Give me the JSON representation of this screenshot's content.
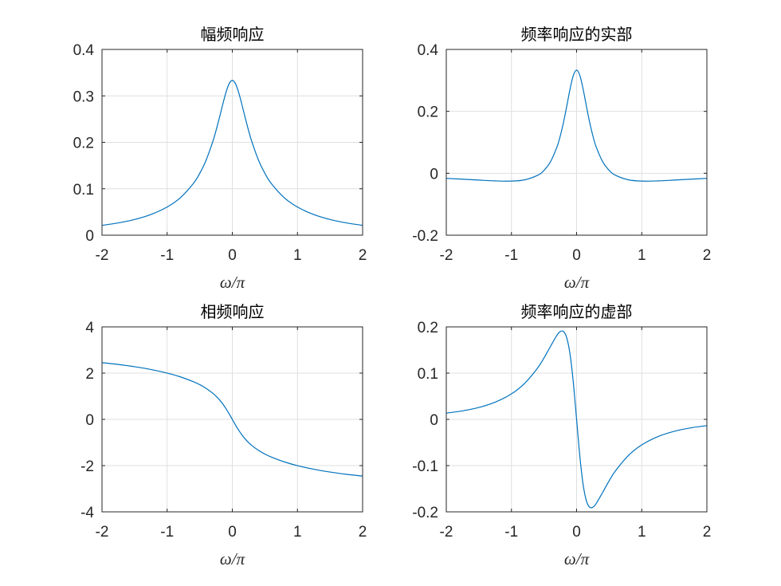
{
  "chart_data": [
    {
      "type": "line",
      "title": "幅频响应",
      "xlabel": "ω/π",
      "xlim": [
        -2,
        2
      ],
      "ylim": [
        0,
        0.4
      ],
      "xticks": [
        "-2",
        "-1",
        "0",
        "1",
        "2"
      ],
      "yticks": [
        "0",
        "0.1",
        "0.2",
        "0.3",
        "0.4"
      ],
      "ytick_values": [
        0,
        0.1,
        0.2,
        0.3,
        0.4
      ],
      "grid": true,
      "line_color": "#0072BD",
      "x": [
        -2,
        -1.75,
        -1.5,
        -1.25,
        -1,
        -0.8,
        -0.6,
        -0.5,
        -0.4,
        -0.3,
        -0.25,
        -0.2,
        -0.15,
        -0.1,
        -0.05,
        0,
        0.05,
        0.1,
        0.15,
        0.2,
        0.25,
        0.3,
        0.4,
        0.5,
        0.6,
        0.8,
        1,
        1.25,
        1.5,
        1.75,
        2
      ],
      "y": [
        0.0212,
        0.0265,
        0.0338,
        0.0445,
        0.0607,
        0.0804,
        0.111,
        0.1331,
        0.1623,
        0.2013,
        0.2252,
        0.2518,
        0.2798,
        0.3062,
        0.3259,
        0.3333,
        0.3259,
        0.3062,
        0.2798,
        0.2518,
        0.2252,
        0.2013,
        0.1623,
        0.1331,
        0.111,
        0.0804,
        0.0607,
        0.0445,
        0.0338,
        0.0265,
        0.0212
      ]
    },
    {
      "type": "line",
      "title": "频率响应的实部",
      "xlabel": "ω/π",
      "xlim": [
        -2,
        2
      ],
      "ylim": [
        -0.2,
        0.4
      ],
      "xticks": [
        "-2",
        "-1",
        "0",
        "1",
        "2"
      ],
      "yticks": [
        "-0.2",
        "0",
        "0.2",
        "0.4"
      ],
      "ytick_values": [
        -0.2,
        0,
        0.2,
        0.4
      ],
      "grid": true,
      "line_color": "#0072BD",
      "x": [
        -2,
        -1.75,
        -1.5,
        -1.25,
        -1,
        -0.8,
        -0.6,
        -0.5,
        -0.4,
        -0.3,
        -0.25,
        -0.2,
        -0.15,
        -0.1,
        -0.05,
        0,
        0.05,
        0.1,
        0.15,
        0.2,
        0.25,
        0.3,
        0.4,
        0.5,
        0.6,
        0.8,
        1,
        1.25,
        1.5,
        1.75,
        2
      ],
      "y": [
        -0.0164,
        -0.0191,
        -0.022,
        -0.0246,
        -0.0253,
        -0.0214,
        -0.0068,
        0.0094,
        0.0374,
        0.0856,
        0.1209,
        0.1652,
        0.2176,
        0.2721,
        0.3161,
        0.3333,
        0.3161,
        0.2721,
        0.2176,
        0.1652,
        0.1209,
        0.0856,
        0.0374,
        0.0094,
        -0.0068,
        -0.0214,
        -0.0253,
        -0.0246,
        -0.022,
        -0.0191,
        -0.0164
      ]
    },
    {
      "type": "line",
      "title": "相频响应",
      "xlabel": "ω/π",
      "xlim": [
        -2,
        2
      ],
      "ylim": [
        -4,
        4
      ],
      "xticks": [
        "-2",
        "-1",
        "0",
        "1",
        "2"
      ],
      "yticks": [
        "-4",
        "-2",
        "0",
        "2",
        "4"
      ],
      "ytick_values": [
        -4,
        -2,
        0,
        2,
        4
      ],
      "grid": true,
      "line_color": "#0072BD",
      "x": [
        -2,
        -1.75,
        -1.5,
        -1.25,
        -1,
        -0.8,
        -0.6,
        -0.5,
        -0.4,
        -0.3,
        -0.25,
        -0.2,
        -0.15,
        -0.1,
        -0.05,
        0,
        0.05,
        0.1,
        0.15,
        0.2,
        0.25,
        0.3,
        0.4,
        0.5,
        0.6,
        0.8,
        1,
        1.25,
        1.5,
        1.75,
        2
      ],
      "y": [
        2.4537,
        2.3749,
        2.2779,
        2.1563,
        2.0007,
        1.8407,
        1.6322,
        1.5018,
        1.3378,
        1.1316,
        1.004,
        0.8555,
        0.6803,
        0.4767,
        0.2467,
        0,
        -0.2467,
        -0.4767,
        -0.6803,
        -0.8555,
        -1.004,
        -1.1316,
        -1.3378,
        -1.5018,
        -1.6322,
        -1.8407,
        -2.0007,
        -2.1563,
        -2.2779,
        -2.3749,
        -2.4537
      ]
    },
    {
      "type": "line",
      "title": "频率响应的虚部",
      "xlabel": "ω/π",
      "xlim": [
        -2,
        2
      ],
      "ylim": [
        -0.2,
        0.2
      ],
      "xticks": [
        "-2",
        "-1",
        "0",
        "1",
        "2"
      ],
      "yticks": [
        "-0.2",
        "-0.1",
        "0",
        "0.1",
        "0.2"
      ],
      "ytick_values": [
        -0.2,
        -0.1,
        0,
        0.1,
        0.2
      ],
      "grid": true,
      "line_color": "#0072BD",
      "x": [
        -2,
        -1.75,
        -1.5,
        -1.25,
        -1,
        -0.8,
        -0.6,
        -0.5,
        -0.4,
        -0.3,
        -0.25,
        -0.2,
        -0.15,
        -0.1,
        -0.05,
        0,
        0.05,
        0.1,
        0.15,
        0.2,
        0.25,
        0.3,
        0.4,
        0.5,
        0.6,
        0.8,
        1,
        1.25,
        1.5,
        1.75,
        2
      ],
      "y": [
        0.0135,
        0.0184,
        0.0257,
        0.0371,
        0.0551,
        0.0775,
        0.1108,
        0.1328,
        0.158,
        0.1822,
        0.19,
        0.19,
        0.176,
        0.1405,
        0.0796,
        0,
        -0.0796,
        -0.1405,
        -0.176,
        -0.19,
        -0.19,
        -0.1822,
        -0.158,
        -0.1328,
        -0.1108,
        -0.0775,
        -0.0551,
        -0.0371,
        -0.0257,
        -0.0184,
        -0.0135
      ]
    }
  ]
}
